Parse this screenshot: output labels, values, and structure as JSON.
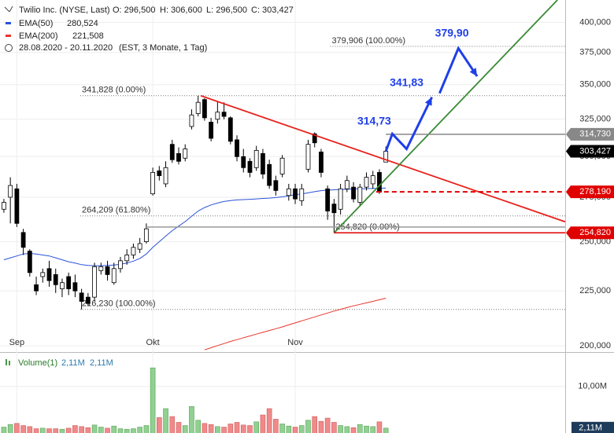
{
  "chart_data": {
    "type": "candlestick",
    "header": {
      "title": "Twilio Inc. (NYSE, Last)",
      "open": "O: 296,500",
      "high": "H: 306,600",
      "low": "L: 296,500",
      "close": "C: 303,427",
      "range": "28.08.2020 - 20.11.2020",
      "range_note": "(EST, 3 Monate, 1 Tag)"
    },
    "categories": [
      null,
      null,
      "Sep",
      null,
      null,
      null,
      null,
      null,
      null,
      null,
      null,
      null,
      null,
      null,
      null,
      null,
      null,
      null,
      null,
      null,
      null,
      null,
      null,
      "Okt",
      null,
      null,
      null,
      null,
      null,
      null,
      null,
      null,
      null,
      null,
      null,
      null,
      null,
      null,
      null,
      null,
      null,
      null,
      null,
      null,
      null,
      "Nov",
      null,
      null,
      null,
      null,
      null,
      null,
      null,
      null,
      null,
      null,
      null,
      null,
      null,
      null
    ],
    "xlim": [
      -0.6,
      86.7
    ],
    "ylim": [
      197.7,
      419.6
    ],
    "log_scale": true,
    "grid": true,
    "yticks": [
      {
        "value": 200,
        "label": "200,000"
      },
      {
        "value": 225,
        "label": "225,000"
      },
      {
        "value": 250,
        "label": "250,000"
      },
      {
        "value": 275,
        "label": "275,000"
      },
      {
        "value": 300,
        "label": "300,000"
      },
      {
        "value": 325,
        "label": "325,000"
      },
      {
        "value": 350,
        "label": "350,000"
      },
      {
        "value": 375,
        "label": "375,000"
      },
      {
        "value": 400,
        "label": "400,000"
      }
    ],
    "candles": {
      "up_color": "#ffffff",
      "down_color": "#000000",
      "open": [
        268,
        275,
        280,
        255,
        245,
        228,
        232,
        236,
        233,
        226,
        232,
        229,
        224,
        222,
        222,
        235,
        237,
        229,
        236,
        240,
        243,
        246,
        250,
        277,
        291,
        283,
        308,
        302,
        299,
        320,
        329,
        339,
        323,
        325,
        330,
        326,
        311,
        300,
        297,
        293,
        302,
        295,
        285,
        289,
        276,
        280,
        273,
        292,
        315,
        303,
        280,
        271,
        268,
        280,
        281,
        272,
        281,
        283,
        290,
        296.5
      ],
      "high": [
        274,
        287,
        283,
        257,
        246,
        232,
        236,
        240,
        236,
        231,
        234,
        233,
        226,
        224,
        239,
        239,
        240,
        239,
        242,
        246,
        249,
        252,
        260,
        293,
        294,
        297,
        311,
        306,
        308,
        332,
        341.83,
        340,
        326,
        338,
        337,
        327,
        314,
        305,
        299,
        307,
        305,
        298,
        288,
        301,
        283,
        283,
        283,
        311,
        316,
        305,
        282,
        274,
        283,
        288,
        284,
        283,
        290,
        291,
        292,
        306.6
      ],
      "low": [
        266,
        260,
        258,
        243,
        232,
        223,
        229,
        227,
        224,
        222,
        223,
        222,
        216.23,
        218,
        220,
        233,
        230,
        228,
        234,
        238,
        241,
        244,
        249,
        276,
        285,
        281,
        296,
        295,
        297,
        318,
        327,
        324,
        310,
        322,
        325,
        308,
        297,
        290,
        287,
        291,
        286,
        280,
        276,
        287,
        273,
        271,
        270,
        290,
        306,
        287,
        262,
        254.82,
        265,
        278,
        272,
        270,
        279,
        280,
        277,
        296.5
      ],
      "close": [
        272,
        282,
        260,
        247,
        234,
        225,
        234,
        230,
        228,
        229,
        226,
        225,
        220,
        219,
        237,
        237,
        233,
        236,
        240,
        243,
        247,
        249,
        257,
        290,
        288,
        293,
        298,
        297,
        305,
        328,
        337,
        326,
        312,
        330,
        327,
        310,
        300,
        293,
        290,
        304,
        289,
        282,
        279,
        299,
        280,
        274,
        280,
        308,
        309,
        290,
        267,
        266,
        280,
        285,
        274,
        281,
        287,
        288,
        278,
        303.427
      ]
    },
    "series": [
      {
        "name": "EMA(50)",
        "legend_value": "280,524",
        "color": "#2a52d8",
        "values": [
          240.5,
          241.5,
          242.5,
          243.5,
          243.8,
          243.5,
          243,
          242.5,
          241.5,
          240.5,
          239.5,
          238.8,
          238,
          237.6,
          237.5,
          237.5,
          237.6,
          237.8,
          238.2,
          238.8,
          239.8,
          241.2,
          243.5,
          247,
          250,
          253,
          256,
          258.5,
          261,
          264,
          267,
          269,
          270.5,
          271.6,
          272.5,
          273,
          273.4,
          273.6,
          273.8,
          274,
          274.3,
          274.5,
          274.8,
          275.2,
          275.8,
          276.5,
          277,
          277.6,
          278.3,
          278.9,
          279.2,
          279.4,
          279.6,
          279.8,
          279.9,
          280,
          280.1,
          280.2,
          280.3,
          280.524
        ]
      },
      {
        "name": "EMA(200)",
        "legend_value": "221,508",
        "color": "#e8352a",
        "values": [
          null,
          null,
          null,
          null,
          null,
          null,
          null,
          null,
          null,
          null,
          null,
          null,
          null,
          null,
          null,
          null,
          null,
          null,
          null,
          null,
          null,
          null,
          null,
          null,
          null,
          null,
          null,
          null,
          null,
          null,
          null,
          198.3,
          199.2,
          200.1,
          201,
          201.9,
          202.7,
          203.5,
          204.3,
          205.1,
          205.9,
          206.7,
          207.5,
          208.3,
          209.2,
          210.1,
          211,
          211.9,
          212.8,
          213.7,
          214.6,
          215.5,
          216.3,
          217.1,
          217.9,
          218.6,
          219.3,
          220,
          220.8,
          221.508
        ]
      }
    ],
    "fibonacci": [
      {
        "value": 379.906,
        "label": "379,906 (100.00%)",
        "from": 50.4
      },
      {
        "value": 341.828,
        "label": "341,828 (0.00%)",
        "from": 11.8
      },
      {
        "value": 264.209,
        "label": "264,209 (61.80%)",
        "from": 11.8
      },
      {
        "value": 216.23,
        "label": "216,230 (100.00%)",
        "from": 11.8
      },
      {
        "value": 254.82,
        "label": "254,820 (0.00%)",
        "from": 51
      }
    ],
    "levels": [
      {
        "value": 258,
        "color": "#999999",
        "style": "solid",
        "from": 22
      },
      {
        "value": 314.73,
        "label": "314,730",
        "color": "#888888",
        "style": "solid",
        "from": 59
      },
      {
        "value": 278.19,
        "label": "278,190",
        "color": "#e00000",
        "style": "dashed",
        "from": 57.5
      },
      {
        "value": 254.82,
        "label": "254,820",
        "color": "#e00000",
        "style": "solid",
        "from": 51
      },
      {
        "value": 303.427,
        "label": "303,427",
        "color": "#000000",
        "style": "none",
        "from": 59
      }
    ],
    "trendlines": [
      {
        "color": "#e8201a",
        "x": [
          30.4,
          86.7
        ],
        "y": [
          341.83,
          260.9
        ]
      },
      {
        "color": "#3a8a35",
        "x": [
          51,
          85.5
        ],
        "y": [
          254.82,
          419.6
        ]
      }
    ],
    "forecast": {
      "color": "#1f3fe8",
      "paths": [
        {
          "x": [
            59,
            60,
            62.2,
            66.1
          ],
          "y": [
            303.427,
            315,
            305,
            340.7
          ]
        },
        {
          "x": [
            67.3,
            70.2,
            73.1
          ],
          "y": [
            343.6,
            378.4,
            356.3
          ]
        }
      ],
      "labels": [
        {
          "label": "314,73",
          "value": 314.73,
          "x": 57.2
        },
        {
          "label": "341,83",
          "value": 341.83,
          "x": 62.2
        },
        {
          "label": "379,90",
          "value": 379.9,
          "x": 69.2
        }
      ]
    },
    "volume": {
      "name": "Volume(1)",
      "legend_values": [
        "2,11M",
        "2,11M"
      ],
      "up_color": "#90d090",
      "down_color": "#f08a8a",
      "ylim": [
        1.19,
        15.9
      ],
      "yticks": [
        {
          "value": 10,
          "label": "10,00M"
        }
      ],
      "current": {
        "value": 2.11,
        "label": "2,11M"
      },
      "values": [
        2.3,
        2.8,
        3.0,
        2.6,
        2.4,
        2.0,
        2.1,
        2.0,
        2.0,
        1.9,
        2.1,
        2.6,
        2.4,
        2.2,
        2.7,
        2.3,
        2.1,
        2.5,
        2.0,
        1.9,
        2.0,
        2.3,
        2.6,
        13.5,
        4.1,
        5.8,
        4.3,
        3.2,
        2.6,
        6.2,
        3.6,
        3.0,
        2.8,
        2.4,
        2.3,
        2.9,
        3.2,
        2.7,
        2.6,
        3.3,
        4.6,
        5.8,
        3.8,
        2.9,
        2.5,
        2.3,
        2.6,
        3.6,
        4.3,
        3.4,
        4.0,
        3.2,
        2.6,
        2.4,
        2.2,
        2.8,
        2.5,
        2.4,
        3.3,
        2.11
      ]
    }
  }
}
